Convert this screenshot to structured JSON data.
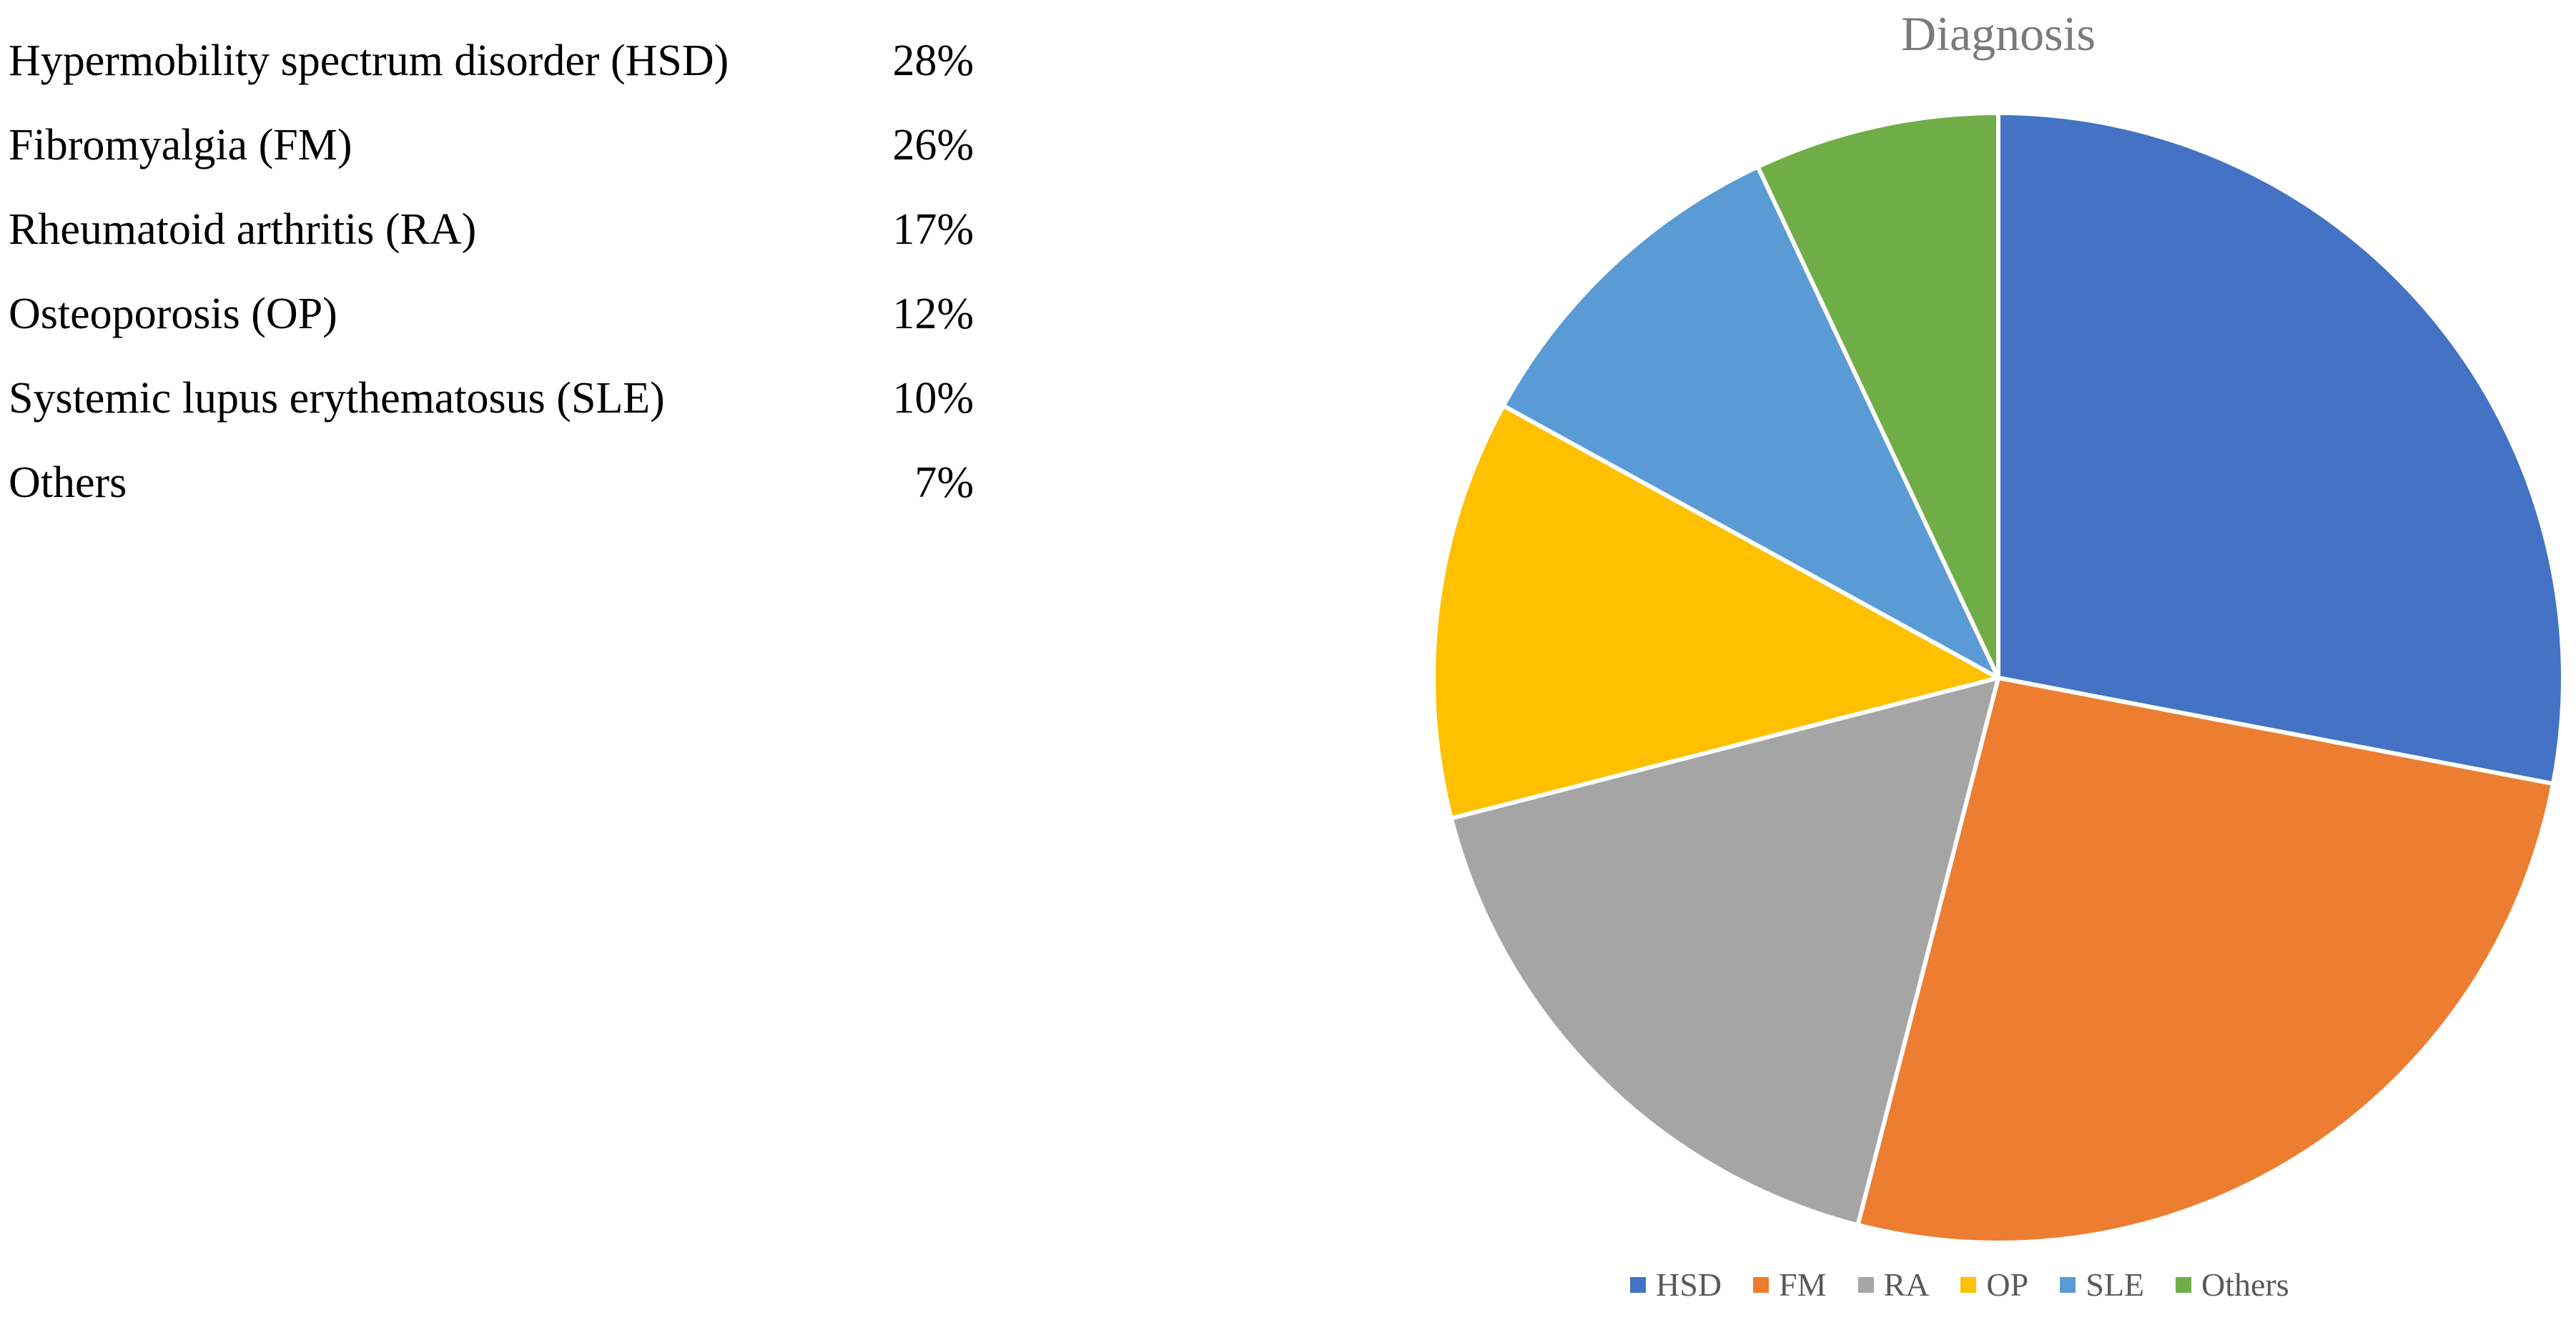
{
  "stats_list": [
    {
      "label": "Hypermobility spectrum disorder (HSD)",
      "value": "28%"
    },
    {
      "label": "Fibromyalgia (FM)",
      "value": "26%"
    },
    {
      "label": "Rheumatoid arthritis (RA)",
      "value": "17%"
    },
    {
      "label": "Osteoporosis (OP)",
      "value": "12%"
    },
    {
      "label": "Systemic lupus erythematosus (SLE)",
      "value": "10%"
    },
    {
      "label": "Others",
      "value": "7%"
    }
  ],
  "chart_data": {
    "type": "pie",
    "title": "Diagnosis",
    "categories": [
      "HSD",
      "FM",
      "RA",
      "OP",
      "SLE",
      "Others"
    ],
    "values": [
      28,
      26,
      17,
      12,
      10,
      7
    ],
    "colors": [
      "#4472C4",
      "#ED7D31",
      "#A5A5A5",
      "#FFC000",
      "#5B9BD5",
      "#70AD47"
    ],
    "legend_position": "bottom",
    "start_angle_deg": 0,
    "direction": "clockwise"
  }
}
